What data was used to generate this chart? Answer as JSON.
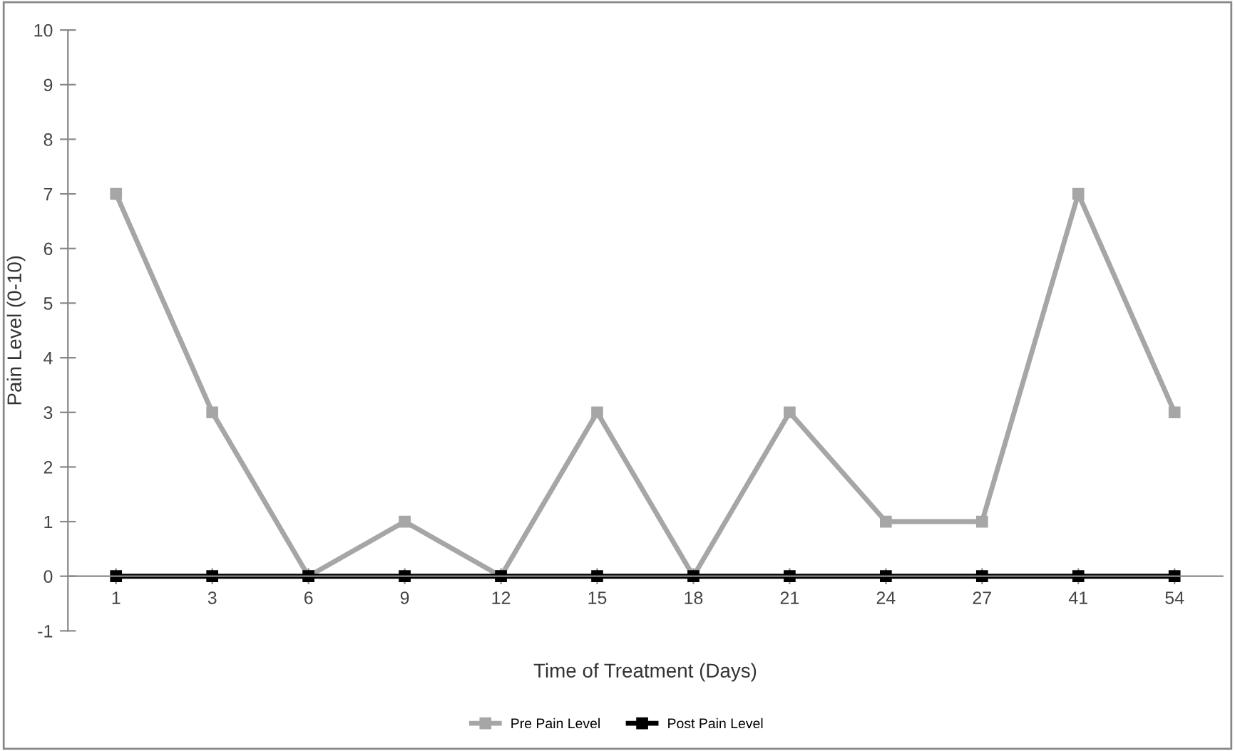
{
  "chart_data": {
    "type": "line",
    "xlabel": "Time of Treatment (Days)",
    "ylabel": "Pain Level (0-10)",
    "categories": [
      "1",
      "3",
      "6",
      "9",
      "12",
      "15",
      "18",
      "21",
      "24",
      "27",
      "41",
      "54"
    ],
    "series": [
      {
        "name": "Pre Pain Level",
        "color": "#a6a6a6",
        "values": [
          7,
          3,
          0,
          1,
          0,
          3,
          0,
          3,
          1,
          1,
          7,
          3
        ]
      },
      {
        "name": "Post Pain Level",
        "color": "#000000",
        "values": [
          0,
          0,
          0,
          0,
          0,
          0,
          0,
          0,
          0,
          0,
          0,
          0
        ]
      }
    ],
    "ylim": [
      -1,
      10
    ],
    "yticks": [
      -1,
      0,
      1,
      2,
      3,
      4,
      5,
      6,
      7,
      8,
      9,
      10
    ],
    "grid": false,
    "legend": "bottom",
    "marker": "square",
    "line_style": "solid"
  }
}
